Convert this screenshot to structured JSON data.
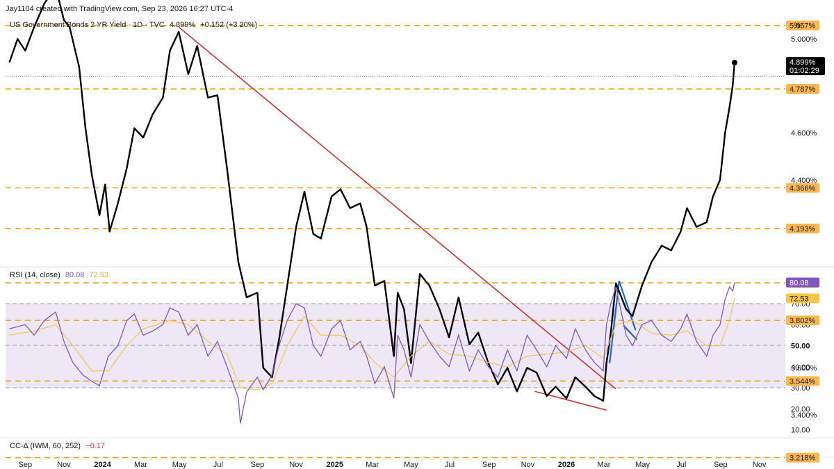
{
  "header": {
    "attribution": "Jay1104 created with TradingView.com, Sep 23, 2026 16:27 UTC-4",
    "symbol": "US Government Bonds 2 YR Yield · 1D · TVC",
    "last": "4.899%",
    "change": "+0.152 (+3.20%)"
  },
  "price_scale": {
    "unit_label": "%",
    "ticks": [
      "5.200%",
      "5.000%",
      "4.600%",
      "4.400%",
      "3.800%",
      "3.600%",
      "3.400%"
    ],
    "levels": [
      "5.057%",
      "4.787%",
      "4.366%",
      "4.193%",
      "3.962%",
      "3.802%",
      "3.544%",
      "3.218%"
    ],
    "current_badge": {
      "value": "4.899%",
      "countdown": "01:02:29"
    }
  },
  "rsi_panel": {
    "title": "RSI (14, close)",
    "rsi_value": "80.08",
    "ma_value": "72.53",
    "ticks": [
      "70.00",
      "60.00",
      "50.00",
      "40.00",
      "30.00",
      "20.00",
      "10.00"
    ]
  },
  "cc_panel": {
    "title": "CC-Δ (IWM, 60, 252)",
    "value": "−0.17"
  },
  "time_axis": [
    "Sep",
    "Nov",
    "2024",
    "Mar",
    "May",
    "Jul",
    "Sep",
    "Nov",
    "2025",
    "Mar",
    "May",
    "Jul",
    "Sep",
    "Nov",
    "2026",
    "Mar",
    "May",
    "Jul",
    "Sep",
    "Nov"
  ],
  "colors": {
    "price": "#000000",
    "level_line": "#f59f00",
    "level_badge": "#ffb74d",
    "trendline": "#d32f2f",
    "flag": "#1e63d6",
    "rsi": "#7e57c2",
    "rsi_ma": "#f7c548",
    "rsi_band": "#ede7f6",
    "negative": "#f23645"
  },
  "chart_data": [
    {
      "type": "line",
      "title": "US Government Bonds 2 YR Yield · 1D · TVC",
      "ylabel": "%",
      "ylim": [
        3.15,
        5.45
      ],
      "x_labels": [
        "2023-09",
        "2023-11",
        "2024-01",
        "2024-03",
        "2024-05",
        "2024-07",
        "2024-09",
        "2024-11",
        "2025-01",
        "2025-03",
        "2025-05",
        "2025-07",
        "2025-09",
        "2025-11",
        "2026-01",
        "2026-03",
        "2026-05",
        "2026-07",
        "2026-09",
        "2026-11"
      ],
      "series": [
        {
          "values": [
            [
              "2023-08-07",
              4.9
            ],
            [
              "2023-08-20",
              5.0
            ],
            [
              "2023-09-01",
              4.95
            ],
            [
              "2023-09-15",
              5.05
            ],
            [
              "2023-10-01",
              5.15
            ],
            [
              "2023-10-19",
              5.22
            ],
            [
              "2023-11-01",
              5.08
            ],
            [
              "2023-11-10",
              5.05
            ],
            [
              "2023-11-25",
              4.88
            ],
            [
              "2023-12-05",
              4.62
            ],
            [
              "2023-12-15",
              4.42
            ],
            [
              "2023-12-27",
              4.25
            ],
            [
              "2024-01-05",
              4.38
            ],
            [
              "2024-01-12",
              4.18
            ],
            [
              "2024-01-25",
              4.3
            ],
            [
              "2024-02-08",
              4.45
            ],
            [
              "2024-02-20",
              4.62
            ],
            [
              "2024-03-05",
              4.58
            ],
            [
              "2024-03-20",
              4.68
            ],
            [
              "2024-04-05",
              4.75
            ],
            [
              "2024-04-16",
              4.95
            ],
            [
              "2024-04-30",
              5.03
            ],
            [
              "2024-05-15",
              4.85
            ],
            [
              "2024-05-29",
              4.97
            ],
            [
              "2024-06-15",
              4.75
            ],
            [
              "2024-06-30",
              4.76
            ],
            [
              "2024-07-15",
              4.45
            ],
            [
              "2024-08-02",
              4.05
            ],
            [
              "2024-08-15",
              3.9
            ],
            [
              "2024-09-01",
              3.92
            ],
            [
              "2024-09-10",
              3.6
            ],
            [
              "2024-09-24",
              3.56
            ],
            [
              "2024-10-05",
              3.72
            ],
            [
              "2024-10-18",
              3.95
            ],
            [
              "2024-11-01",
              4.2
            ],
            [
              "2024-11-14",
              4.35
            ],
            [
              "2024-11-28",
              4.17
            ],
            [
              "2024-12-10",
              4.15
            ],
            [
              "2024-12-27",
              4.33
            ],
            [
              "2025-01-10",
              4.36
            ],
            [
              "2025-01-25",
              4.28
            ],
            [
              "2025-02-10",
              4.3
            ],
            [
              "2025-02-20",
              4.2
            ],
            [
              "2025-03-05",
              3.95
            ],
            [
              "2025-03-20",
              3.97
            ],
            [
              "2025-04-04",
              3.65
            ],
            [
              "2025-04-10",
              3.92
            ],
            [
              "2025-04-20",
              3.85
            ],
            [
              "2025-05-01",
              3.62
            ],
            [
              "2025-05-15",
              4.0
            ],
            [
              "2025-05-30",
              3.95
            ],
            [
              "2025-06-15",
              3.85
            ],
            [
              "2025-06-30",
              3.73
            ],
            [
              "2025-07-15",
              3.9
            ],
            [
              "2025-08-01",
              3.7
            ],
            [
              "2025-08-15",
              3.75
            ],
            [
              "2025-08-31",
              3.62
            ],
            [
              "2025-09-15",
              3.53
            ],
            [
              "2025-09-30",
              3.6
            ],
            [
              "2025-10-15",
              3.5
            ],
            [
              "2025-10-31",
              3.6
            ],
            [
              "2025-11-15",
              3.58
            ],
            [
              "2025-12-01",
              3.48
            ],
            [
              "2025-12-15",
              3.52
            ],
            [
              "2026-01-01",
              3.47
            ],
            [
              "2026-01-15",
              3.56
            ],
            [
              "2026-01-31",
              3.52
            ],
            [
              "2026-02-14",
              3.48
            ],
            [
              "2026-02-28",
              3.46
            ],
            [
              "2026-03-05",
              3.62
            ],
            [
              "2026-03-12",
              3.75
            ],
            [
              "2026-03-20",
              3.96
            ],
            [
              "2026-04-05",
              3.85
            ],
            [
              "2026-04-15",
              3.82
            ],
            [
              "2026-04-30",
              3.95
            ],
            [
              "2026-05-15",
              4.05
            ],
            [
              "2026-05-31",
              4.12
            ],
            [
              "2026-06-15",
              4.1
            ],
            [
              "2026-06-30",
              4.18
            ],
            [
              "2026-07-10",
              4.28
            ],
            [
              "2026-07-25",
              4.2
            ],
            [
              "2026-08-10",
              4.22
            ],
            [
              "2026-08-20",
              4.33
            ],
            [
              "2026-08-31",
              4.4
            ],
            [
              "2026-09-08",
              4.6
            ],
            [
              "2026-09-15",
              4.71
            ],
            [
              "2026-09-20",
              4.8
            ],
            [
              "2026-09-23",
              4.899
            ]
          ]
        }
      ],
      "horizontal_levels": [
        5.057,
        4.787,
        4.366,
        4.193,
        3.962,
        3.802,
        3.544,
        3.218
      ],
      "trendlines": [
        {
          "name": "resistance",
          "from": [
            "2024-04-30",
            5.05
          ],
          "to": [
            "2026-03-20",
            3.51
          ]
        },
        {
          "name": "support",
          "from": [
            "2025-11-12",
            3.5
          ],
          "to": [
            "2026-03-05",
            3.42
          ]
        }
      ],
      "flag_lines": [
        {
          "from": [
            "2026-03-10",
            3.62
          ],
          "to": [
            "2026-03-25",
            3.97
          ]
        },
        {
          "from": [
            "2026-03-25",
            3.97
          ],
          "to": [
            "2026-04-20",
            3.76
          ]
        },
        {
          "from": [
            "2026-04-01",
            3.78
          ],
          "to": [
            "2026-04-22",
            3.72
          ]
        }
      ],
      "last_value": 4.899
    },
    {
      "type": "line",
      "title": "RSI (14, close)",
      "ylim": [
        5,
        85
      ],
      "band": [
        30,
        70
      ],
      "midline": 50,
      "series": [
        {
          "name": "RSI",
          "values": [
            [
              "2023-08-07",
              58
            ],
            [
              "2023-09-01",
              60
            ],
            [
              "2023-09-15",
              55
            ],
            [
              "2023-10-01",
              62
            ],
            [
              "2023-10-19",
              66
            ],
            [
              "2023-11-01",
              52
            ],
            [
              "2023-11-15",
              42
            ],
            [
              "2023-12-01",
              36
            ],
            [
              "2023-12-15",
              33
            ],
            [
              "2023-12-27",
              31
            ],
            [
              "2024-01-10",
              45
            ],
            [
              "2024-01-25",
              50
            ],
            [
              "2024-02-08",
              62
            ],
            [
              "2024-02-20",
              65
            ],
            [
              "2024-03-05",
              55
            ],
            [
              "2024-03-20",
              57
            ],
            [
              "2024-04-05",
              60
            ],
            [
              "2024-04-16",
              68
            ],
            [
              "2024-04-30",
              66
            ],
            [
              "2024-05-15",
              55
            ],
            [
              "2024-05-29",
              60
            ],
            [
              "2024-06-15",
              45
            ],
            [
              "2024-06-30",
              52
            ],
            [
              "2024-07-15",
              40
            ],
            [
              "2024-08-02",
              25
            ],
            [
              "2024-08-05",
              13
            ],
            [
              "2024-08-15",
              28
            ],
            [
              "2024-09-01",
              35
            ],
            [
              "2024-09-10",
              29
            ],
            [
              "2024-09-24",
              36
            ],
            [
              "2024-10-05",
              50
            ],
            [
              "2024-10-18",
              62
            ],
            [
              "2024-11-01",
              70
            ],
            [
              "2024-11-14",
              68
            ],
            [
              "2024-11-28",
              50
            ],
            [
              "2024-12-10",
              45
            ],
            [
              "2024-12-27",
              58
            ],
            [
              "2025-01-10",
              62
            ],
            [
              "2025-01-25",
              48
            ],
            [
              "2025-02-10",
              52
            ],
            [
              "2025-02-20",
              45
            ],
            [
              "2025-03-05",
              32
            ],
            [
              "2025-03-20",
              40
            ],
            [
              "2025-04-04",
              25
            ],
            [
              "2025-04-10",
              55
            ],
            [
              "2025-04-20",
              48
            ],
            [
              "2025-05-01",
              35
            ],
            [
              "2025-05-15",
              60
            ],
            [
              "2025-05-30",
              52
            ],
            [
              "2025-06-15",
              45
            ],
            [
              "2025-06-30",
              40
            ],
            [
              "2025-07-15",
              55
            ],
            [
              "2025-08-01",
              38
            ],
            [
              "2025-08-15",
              48
            ],
            [
              "2025-08-31",
              40
            ],
            [
              "2025-09-15",
              35
            ],
            [
              "2025-09-30",
              48
            ],
            [
              "2025-10-15",
              38
            ],
            [
              "2025-10-31",
              55
            ],
            [
              "2025-11-15",
              48
            ],
            [
              "2025-12-01",
              40
            ],
            [
              "2025-12-15",
              50
            ],
            [
              "2026-01-01",
              44
            ],
            [
              "2026-01-15",
              58
            ],
            [
              "2026-01-31",
              48
            ],
            [
              "2026-02-14",
              42
            ],
            [
              "2026-02-28",
              38
            ],
            [
              "2026-03-05",
              60
            ],
            [
              "2026-03-12",
              70
            ],
            [
              "2026-03-20",
              78
            ],
            [
              "2026-04-05",
              55
            ],
            [
              "2026-04-15",
              50
            ],
            [
              "2026-04-30",
              60
            ],
            [
              "2026-05-15",
              62
            ],
            [
              "2026-05-31",
              55
            ],
            [
              "2026-06-15",
              52
            ],
            [
              "2026-06-30",
              58
            ],
            [
              "2026-07-10",
              65
            ],
            [
              "2026-07-25",
              52
            ],
            [
              "2026-08-10",
              45
            ],
            [
              "2026-08-20",
              55
            ],
            [
              "2026-08-31",
              60
            ],
            [
              "2026-09-08",
              72
            ],
            [
              "2026-09-15",
              78
            ],
            [
              "2026-09-20",
              76
            ],
            [
              "2026-09-23",
              80.08
            ]
          ]
        },
        {
          "name": "RSI MA",
          "values": [
            [
              "2023-08-07",
              55
            ],
            [
              "2023-09-15",
              57
            ],
            [
              "2023-10-19",
              60
            ],
            [
              "2023-11-15",
              50
            ],
            [
              "2023-12-15",
              38
            ],
            [
              "2024-01-10",
              38
            ],
            [
              "2024-02-08",
              50
            ],
            [
              "2024-03-05",
              58
            ],
            [
              "2024-04-16",
              62
            ],
            [
              "2024-05-15",
              60
            ],
            [
              "2024-06-15",
              52
            ],
            [
              "2024-07-15",
              46
            ],
            [
              "2024-08-05",
              30
            ],
            [
              "2024-09-01",
              29
            ],
            [
              "2024-09-24",
              32
            ],
            [
              "2024-10-18",
              50
            ],
            [
              "2024-11-14",
              64
            ],
            [
              "2024-12-10",
              55
            ],
            [
              "2025-01-10",
              55
            ],
            [
              "2025-02-10",
              50
            ],
            [
              "2025-03-05",
              42
            ],
            [
              "2025-04-04",
              35
            ],
            [
              "2025-05-01",
              45
            ],
            [
              "2025-05-30",
              52
            ],
            [
              "2025-06-30",
              46
            ],
            [
              "2025-08-01",
              45
            ],
            [
              "2025-08-31",
              42
            ],
            [
              "2025-09-30",
              40
            ],
            [
              "2025-10-31",
              45
            ],
            [
              "2025-12-01",
              46
            ],
            [
              "2026-01-01",
              47
            ],
            [
              "2026-01-31",
              50
            ],
            [
              "2026-02-28",
              44
            ],
            [
              "2026-03-20",
              60
            ],
            [
              "2026-04-15",
              62
            ],
            [
              "2026-05-15",
              56
            ],
            [
              "2026-06-15",
              55
            ],
            [
              "2026-07-10",
              57
            ],
            [
              "2026-08-10",
              50
            ],
            [
              "2026-08-31",
              50
            ],
            [
              "2026-09-15",
              62
            ],
            [
              "2026-09-23",
              72.53
            ]
          ]
        }
      ]
    }
  ]
}
